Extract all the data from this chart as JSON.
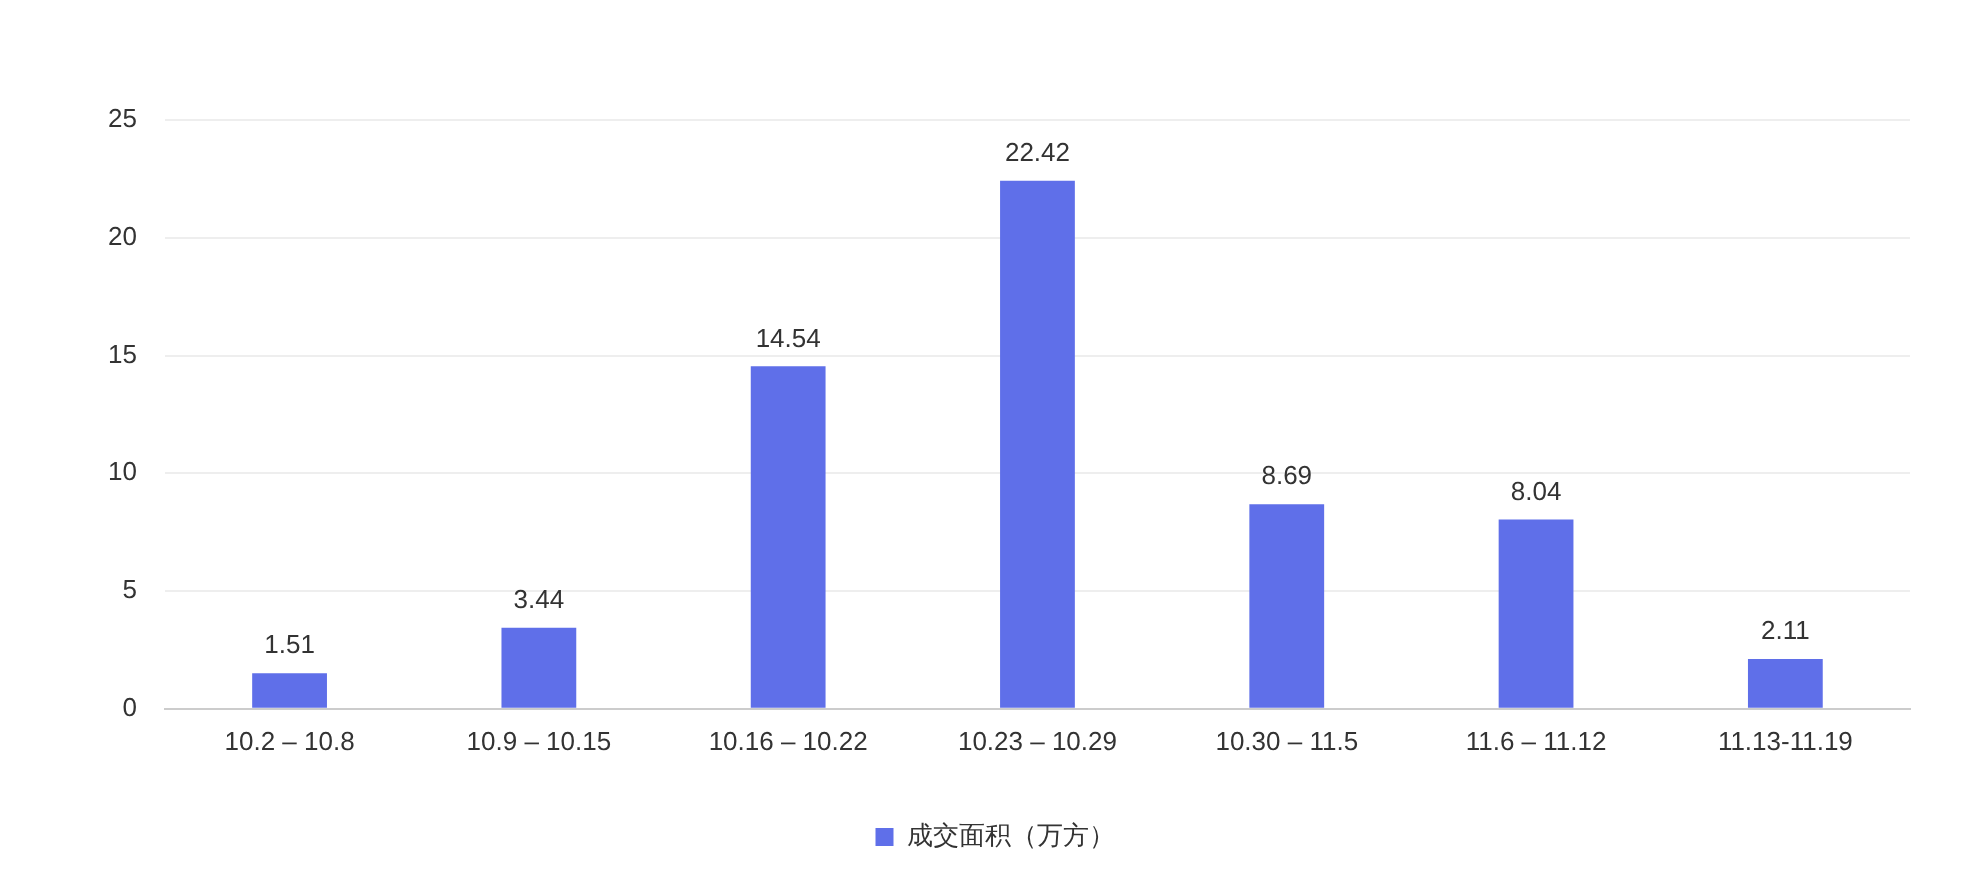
{
  "chart_data": {
    "type": "bar",
    "categories": [
      "10.2 – 10.8",
      "10.9 – 10.15",
      "10.16 – 10.22",
      "10.23 – 10.29",
      "10.30 – 11.5",
      "11.6 – 11.12",
      "11.13-11.19"
    ],
    "series": [
      {
        "name": "成交面积（万方）",
        "color": "#5f6fe9",
        "values": [
          1.51,
          3.44,
          14.54,
          22.42,
          8.69,
          8.04,
          2.11
        ]
      }
    ],
    "ylim": [
      0,
      25
    ],
    "yticks": [
      0,
      5,
      10,
      15,
      20,
      25
    ],
    "grid": "y",
    "legend": "bottom",
    "data_labels": true
  }
}
